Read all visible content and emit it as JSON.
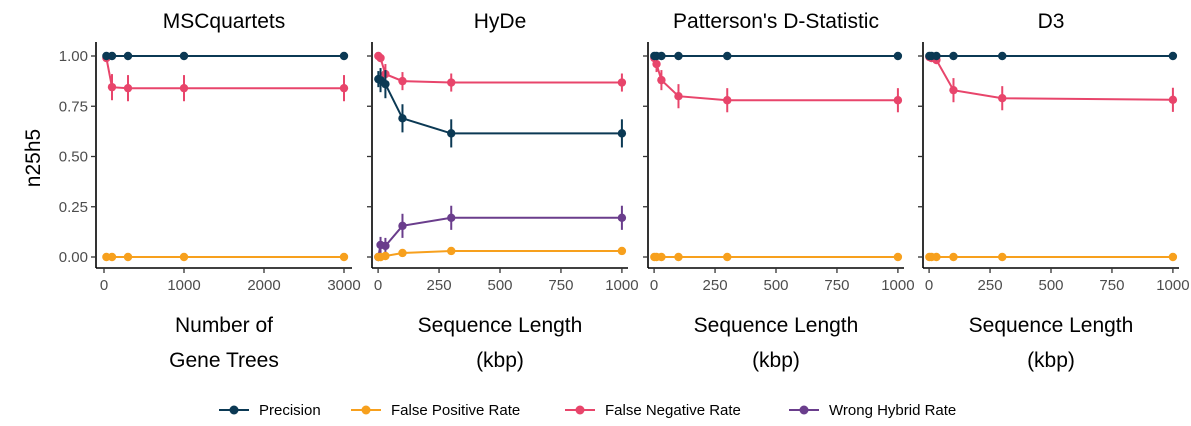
{
  "chart_data": {
    "type": "line",
    "ylabel": "n25h5",
    "ylim": [
      0,
      1
    ],
    "yticks": [
      0,
      0.25,
      0.5,
      0.75,
      1
    ],
    "ytick_labels": [
      "0.00",
      "0.25",
      "0.50",
      "0.75",
      "1.00"
    ],
    "grid": false,
    "legend_position": "bottom",
    "series_styles": [
      {
        "name": "Precision",
        "color": "#0b3954"
      },
      {
        "name": "False Positive Rate",
        "color": "#f7a01d"
      },
      {
        "name": "False Negative Rate",
        "color": "#e8456b"
      },
      {
        "name": "Wrong Hybrid Rate",
        "color": "#6a3d8c"
      }
    ],
    "panels": [
      {
        "title": "MSCquartets",
        "xlabel": [
          "Number of",
          "Gene Trees"
        ],
        "xlim": [
          -100,
          3100
        ],
        "xticks": [
          0,
          1000,
          2000,
          3000
        ],
        "series": [
          {
            "name": "Precision",
            "x": [
              30,
              100,
              300,
              1000,
              3000
            ],
            "y": [
              1.0,
              1.0,
              1.0,
              1.0,
              1.0
            ],
            "err": [
              0,
              0,
              0,
              0,
              0
            ]
          },
          {
            "name": "False Positive Rate",
            "x": [
              30,
              100,
              300,
              1000,
              3000
            ],
            "y": [
              0.0,
              0.0,
              0.0,
              0.0,
              0.0
            ],
            "err": [
              0,
              0,
              0,
              0,
              0
            ]
          },
          {
            "name": "False Negative Rate",
            "x": [
              30,
              100,
              300,
              1000,
              3000
            ],
            "y": [
              0.99,
              0.845,
              0.84,
              0.84,
              0.84
            ],
            "err": [
              0.01,
              0.065,
              0.065,
              0.065,
              0.065
            ]
          }
        ]
      },
      {
        "title": "HyDe",
        "xlabel": [
          "Sequence Length",
          "(kbp)"
        ],
        "xlim": [
          -25,
          1025
        ],
        "xticks": [
          0,
          250,
          500,
          750,
          1000
        ],
        "series": [
          {
            "name": "Precision",
            "x": [
              1,
              10,
              30,
              100,
              300,
              1000
            ],
            "y": [
              0.885,
              0.88,
              0.86,
              0.69,
              0.615,
              0.615
            ],
            "err": [
              0.04,
              0.06,
              0.07,
              0.07,
              0.07,
              0.07
            ]
          },
          {
            "name": "False Positive Rate",
            "x": [
              1,
              10,
              30,
              100,
              300,
              1000
            ],
            "y": [
              0.0,
              0.0,
              0.005,
              0.02,
              0.03,
              0.03
            ],
            "err": [
              0,
              0,
              0,
              0,
              0,
              0
            ]
          },
          {
            "name": "False Negative Rate",
            "x": [
              1,
              10,
              30,
              100,
              300,
              1000
            ],
            "y": [
              1.0,
              0.99,
              0.91,
              0.875,
              0.868,
              0.868
            ],
            "err": [
              0.01,
              0.02,
              0.05,
              0.045,
              0.045,
              0.045
            ]
          },
          {
            "name": "Wrong Hybrid Rate",
            "x": [
              1,
              10,
              30,
              100,
              300,
              1000
            ],
            "y": [
              0.0,
              0.06,
              0.055,
              0.155,
              0.195,
              0.195
            ],
            "err": [
              0,
              0.04,
              0.04,
              0.06,
              0.06,
              0.06
            ]
          }
        ]
      },
      {
        "title": "Patterson's D-Statistic",
        "xlabel": [
          "Sequence Length",
          "(kbp)"
        ],
        "xlim": [
          -25,
          1025
        ],
        "xticks": [
          0,
          250,
          500,
          750,
          1000
        ],
        "series": [
          {
            "name": "Precision",
            "x": [
              1,
              10,
              30,
              100,
              300,
              1000
            ],
            "y": [
              1.0,
              1.0,
              1.0,
              1.0,
              1.0,
              1.0
            ],
            "err": [
              0,
              0,
              0,
              0,
              0,
              0
            ]
          },
          {
            "name": "False Positive Rate",
            "x": [
              1,
              10,
              30,
              100,
              300,
              1000
            ],
            "y": [
              0.0,
              0.0,
              0.0,
              0.0,
              0.0,
              0.0
            ],
            "err": [
              0,
              0,
              0,
              0,
              0,
              0
            ]
          },
          {
            "name": "False Negative Rate",
            "x": [
              1,
              10,
              30,
              100,
              300,
              1000
            ],
            "y": [
              0.99,
              0.96,
              0.88,
              0.8,
              0.78,
              0.78
            ],
            "err": [
              0.01,
              0.04,
              0.05,
              0.06,
              0.06,
              0.06
            ]
          }
        ]
      },
      {
        "title": "D3",
        "xlabel": [
          "Sequence Length",
          "(kbp)"
        ],
        "xlim": [
          -25,
          1025
        ],
        "xticks": [
          0,
          250,
          500,
          750,
          1000
        ],
        "series": [
          {
            "name": "Precision",
            "x": [
              1,
              10,
              30,
              100,
              300,
              1000
            ],
            "y": [
              1.0,
              1.0,
              1.0,
              1.0,
              1.0,
              1.0
            ],
            "err": [
              0,
              0,
              0,
              0,
              0,
              0
            ]
          },
          {
            "name": "False Positive Rate",
            "x": [
              1,
              10,
              30,
              100,
              300,
              1000
            ],
            "y": [
              0.0,
              0.0,
              0.0,
              0.0,
              0.0,
              0.0
            ],
            "err": [
              0,
              0,
              0,
              0,
              0,
              0
            ]
          },
          {
            "name": "False Negative Rate",
            "x": [
              1,
              10,
              30,
              100,
              300,
              1000
            ],
            "y": [
              0.995,
              0.99,
              0.98,
              0.83,
              0.79,
              0.782
            ],
            "err": [
              0.01,
              0.01,
              0.02,
              0.06,
              0.06,
              0.06
            ]
          }
        ]
      }
    ]
  }
}
